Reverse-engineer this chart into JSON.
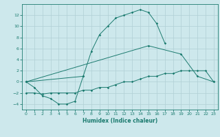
{
  "xlabel": "Humidex (Indice chaleur)",
  "line_color": "#1a7a6e",
  "bg_color": "#cde8ec",
  "grid_color": "#b0cfd4",
  "ylim": [
    -5,
    14
  ],
  "xlim": [
    -0.5,
    23.5
  ],
  "yticks": [
    -4,
    -2,
    0,
    2,
    4,
    6,
    8,
    10,
    12
  ],
  "xticks": [
    0,
    1,
    2,
    3,
    4,
    5,
    6,
    7,
    8,
    9,
    10,
    11,
    12,
    13,
    14,
    15,
    16,
    17,
    18,
    19,
    20,
    21,
    22,
    23
  ],
  "curve1_x": [
    0,
    1,
    2,
    3,
    4,
    5,
    6,
    7
  ],
  "curve1_y": [
    0,
    -1,
    -2.5,
    -3,
    -4,
    -4,
    -3.5,
    1
  ],
  "curve2_x": [
    0,
    7,
    8,
    9,
    10,
    11,
    12,
    13,
    14,
    15,
    16,
    17
  ],
  "curve2_y": [
    0,
    1,
    5.5,
    8.5,
    10,
    11.5,
    12,
    12.5,
    13,
    12.5,
    10.5,
    7
  ],
  "curve3_x": [
    0,
    15,
    19,
    21,
    23
  ],
  "curve3_y": [
    0,
    6.5,
    5,
    1,
    0
  ],
  "curve4_x": [
    0,
    1,
    2,
    3,
    4,
    5,
    6,
    7,
    8,
    9,
    10,
    11,
    12,
    13,
    14,
    15,
    16,
    17,
    18,
    19,
    20,
    21,
    22,
    23
  ],
  "curve4_y": [
    -2,
    -2,
    -2.2,
    -2,
    -2,
    -2,
    -2,
    -1.5,
    -1.5,
    -1,
    -1,
    -0.5,
    0,
    0,
    0.5,
    1,
    1,
    1.5,
    1.5,
    2,
    2,
    2,
    2,
    0
  ]
}
